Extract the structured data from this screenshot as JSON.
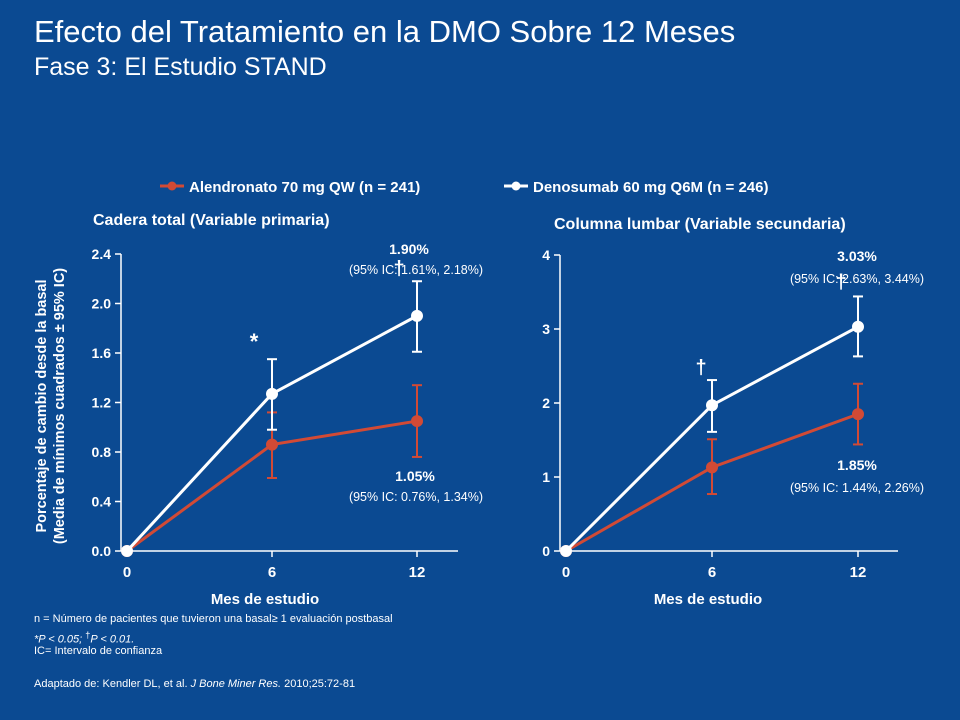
{
  "slide": {
    "title": "Efecto del Tratamiento  en la DMO Sobre 12 Meses",
    "subtitle": "Fase 3: El Estudio STAND",
    "colors": {
      "background": "#0b4a92",
      "alendronate": "#d24a35",
      "denosumab": "#ffffff"
    },
    "footnotes": {
      "n_def": "n = Número de pacientes que tuvieron una basal≥ 1 evaluación postbasal",
      "sig_p05": "*P < 0.05; ",
      "sig_dagger": "†",
      "sig_p01": "P < 0.01.",
      "ic_def": "IC= Intervalo de confianza",
      "source_prefix": "Adaptado de: Kendler DL, et al. ",
      "source_journal": "J Bone Miner Res.",
      "source_suffix": " 2010;25:72-81"
    }
  },
  "chart_data": [
    {
      "type": "line",
      "title": "Cadera total (Variable primaria)",
      "xlabel": "Mes de estudio",
      "ylabel_line1": "Porcentaje de cambio desde la basal",
      "ylabel_line2": "(Media de mínimos cuadrados ± 95% IC)",
      "x": [
        0,
        6,
        12
      ],
      "xticks": [
        "0",
        "6",
        "12"
      ],
      "ylim": [
        0,
        2.4
      ],
      "yticks": [
        "0.0",
        "0.4",
        "0.8",
        "1.2",
        "1.6",
        "2.0",
        "2.4"
      ],
      "legend": "top",
      "grid": false,
      "series": [
        {
          "name": "Alendronato 70 mg QW (n = 241)",
          "color": "#d24a35",
          "values": [
            0,
            0.86,
            1.05
          ],
          "lower": [
            0,
            0.59,
            0.76
          ],
          "upper": [
            0,
            1.12,
            1.34
          ]
        },
        {
          "name": "Denosumab 60 mg Q6M (n = 246)",
          "color": "#ffffff",
          "values": [
            0,
            1.27,
            1.9
          ],
          "lower": [
            0,
            0.98,
            1.61
          ],
          "upper": [
            0,
            1.55,
            2.18
          ]
        }
      ],
      "significance": [
        {
          "x": 6,
          "symbol": "*"
        },
        {
          "x": 12,
          "symbol": "†"
        }
      ],
      "annotations": [
        {
          "value": "1.90%",
          "ci": "(95% IC: 1.61%, 2.18%)"
        },
        {
          "value": "1.05%",
          "ci": "(95% IC: 0.76%, 1.34%)"
        }
      ]
    },
    {
      "type": "line",
      "title": "Columna lumbar (Variable secundaria)",
      "xlabel": "Mes de estudio",
      "x": [
        0,
        6,
        12
      ],
      "xticks": [
        "0",
        "6",
        "12"
      ],
      "ylim": [
        0,
        4
      ],
      "yticks": [
        "0",
        "1",
        "2",
        "3",
        "4"
      ],
      "grid": false,
      "series": [
        {
          "name": "Alendronato 70 mg QW (n = 241)",
          "color": "#d24a35",
          "values": [
            0,
            1.13,
            1.85
          ],
          "lower": [
            0,
            0.77,
            1.44
          ],
          "upper": [
            0,
            1.51,
            2.26
          ]
        },
        {
          "name": "Denosumab 60 mg Q6M (n = 246)",
          "color": "#ffffff",
          "values": [
            0,
            1.97,
            3.03
          ],
          "lower": [
            0,
            1.61,
            2.63
          ],
          "upper": [
            0,
            2.31,
            3.44
          ]
        }
      ],
      "significance": [
        {
          "x": 6,
          "symbol": "†"
        },
        {
          "x": 12,
          "symbol": "†"
        }
      ],
      "annotations": [
        {
          "value": "3.03%",
          "ci": "(95% IC: 2.63%, 3.44%)"
        },
        {
          "value": "1.85%",
          "ci": "(95% IC: 1.44%, 2.26%)"
        }
      ]
    }
  ]
}
